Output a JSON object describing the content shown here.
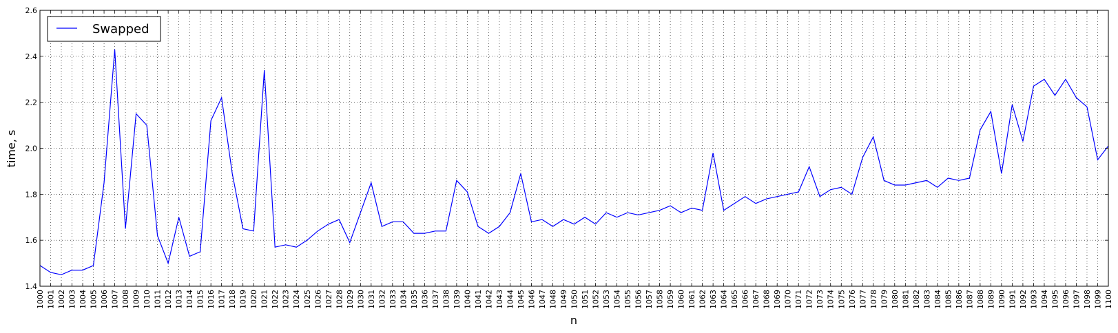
{
  "chart_data": {
    "type": "line",
    "title": "",
    "xlabel": "n",
    "ylabel": "time, s",
    "xlim": [
      1000,
      1100
    ],
    "ylim": [
      1.4,
      2.6
    ],
    "yticks": [
      "1.4",
      "1.6",
      "1.8",
      "2.0",
      "2.2",
      "2.4",
      "2.6"
    ],
    "grid": true,
    "legend_position": "top-left",
    "series": [
      {
        "name": "Swapped",
        "color": "#0000ff",
        "x_start": 1000,
        "x_step": 1,
        "values": [
          1.49,
          1.46,
          1.45,
          1.47,
          1.47,
          1.49,
          1.85,
          2.43,
          1.65,
          2.15,
          2.1,
          1.62,
          1.5,
          1.7,
          1.53,
          1.55,
          2.12,
          2.22,
          1.89,
          1.65,
          1.64,
          2.34,
          1.57,
          1.58,
          1.57,
          1.6,
          1.64,
          1.67,
          1.69,
          1.59,
          1.72,
          1.85,
          1.66,
          1.68,
          1.68,
          1.63,
          1.63,
          1.64,
          1.64,
          1.86,
          1.81,
          1.66,
          1.63,
          1.66,
          1.72,
          1.89,
          1.68,
          1.69,
          1.66,
          1.69,
          1.67,
          1.7,
          1.67,
          1.72,
          1.7,
          1.72,
          1.71,
          1.72,
          1.73,
          1.75,
          1.72,
          1.74,
          1.73,
          1.98,
          1.73,
          1.76,
          1.79,
          1.76,
          1.78,
          1.79,
          1.8,
          1.81,
          1.92,
          1.79,
          1.82,
          1.83,
          1.8,
          1.96,
          2.05,
          1.86,
          1.84,
          1.84,
          1.85,
          1.86,
          1.83,
          1.87,
          1.86,
          1.87,
          2.08,
          2.16,
          1.89,
          2.19,
          2.03,
          2.27,
          2.3,
          2.23,
          2.3,
          2.22,
          2.18,
          1.95,
          2.01
        ]
      }
    ]
  }
}
